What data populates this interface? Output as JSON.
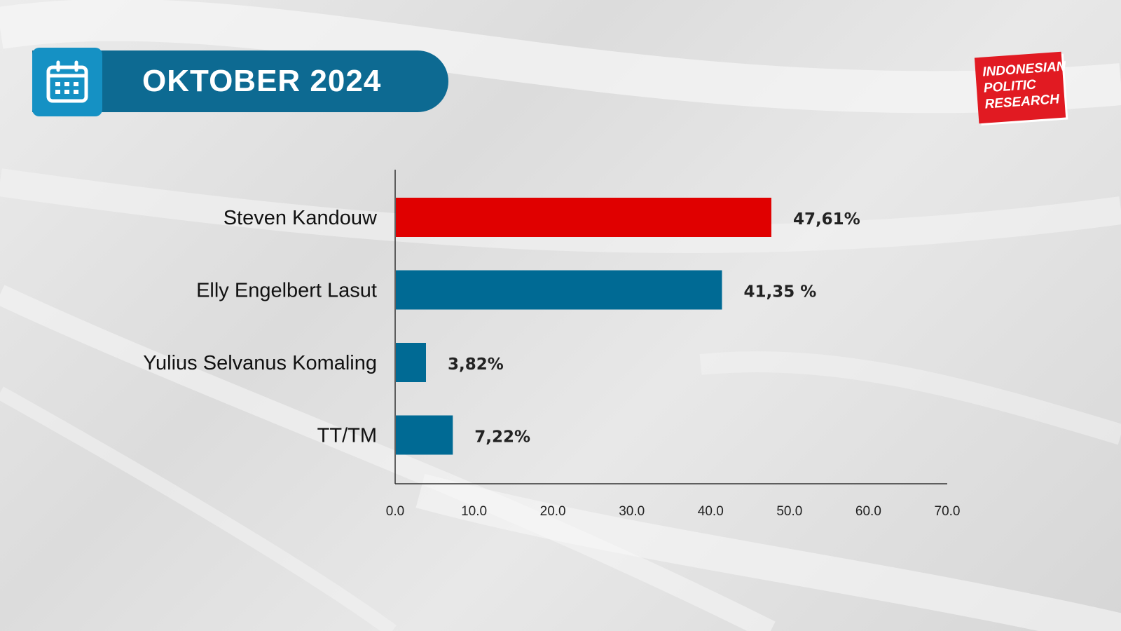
{
  "header": {
    "title": "OKTOBER 2024",
    "icon": "calendar-icon"
  },
  "logo": {
    "lines": [
      "INDONESIAN",
      "POLITIC",
      "RESEARCH"
    ],
    "color": "#e11a22"
  },
  "colors": {
    "header_bg": "#0d6a92",
    "icon_bg": "#1591c4",
    "highlight_bar": "#e00000",
    "bar": "#006a94"
  },
  "chart_data": {
    "type": "bar",
    "orientation": "horizontal",
    "categories": [
      "Steven Kandouw",
      "Elly Engelbert Lasut",
      "Yulius Selvanus Komaling",
      "TT/TM"
    ],
    "values": [
      47.61,
      41.35,
      3.82,
      7.22
    ],
    "value_labels": [
      "47,61%",
      "41,35 %",
      "3,82%",
      "7,22%"
    ],
    "bar_colors": [
      "#e00000",
      "#006a94",
      "#006a94",
      "#006a94"
    ],
    "xlim": [
      0,
      70
    ],
    "xticks": [
      "0.0",
      "10.0",
      "20.0",
      "30.0",
      "40.0",
      "50.0",
      "60.0",
      "70.0"
    ],
    "grid": false,
    "title": "",
    "xlabel": "",
    "ylabel": ""
  }
}
